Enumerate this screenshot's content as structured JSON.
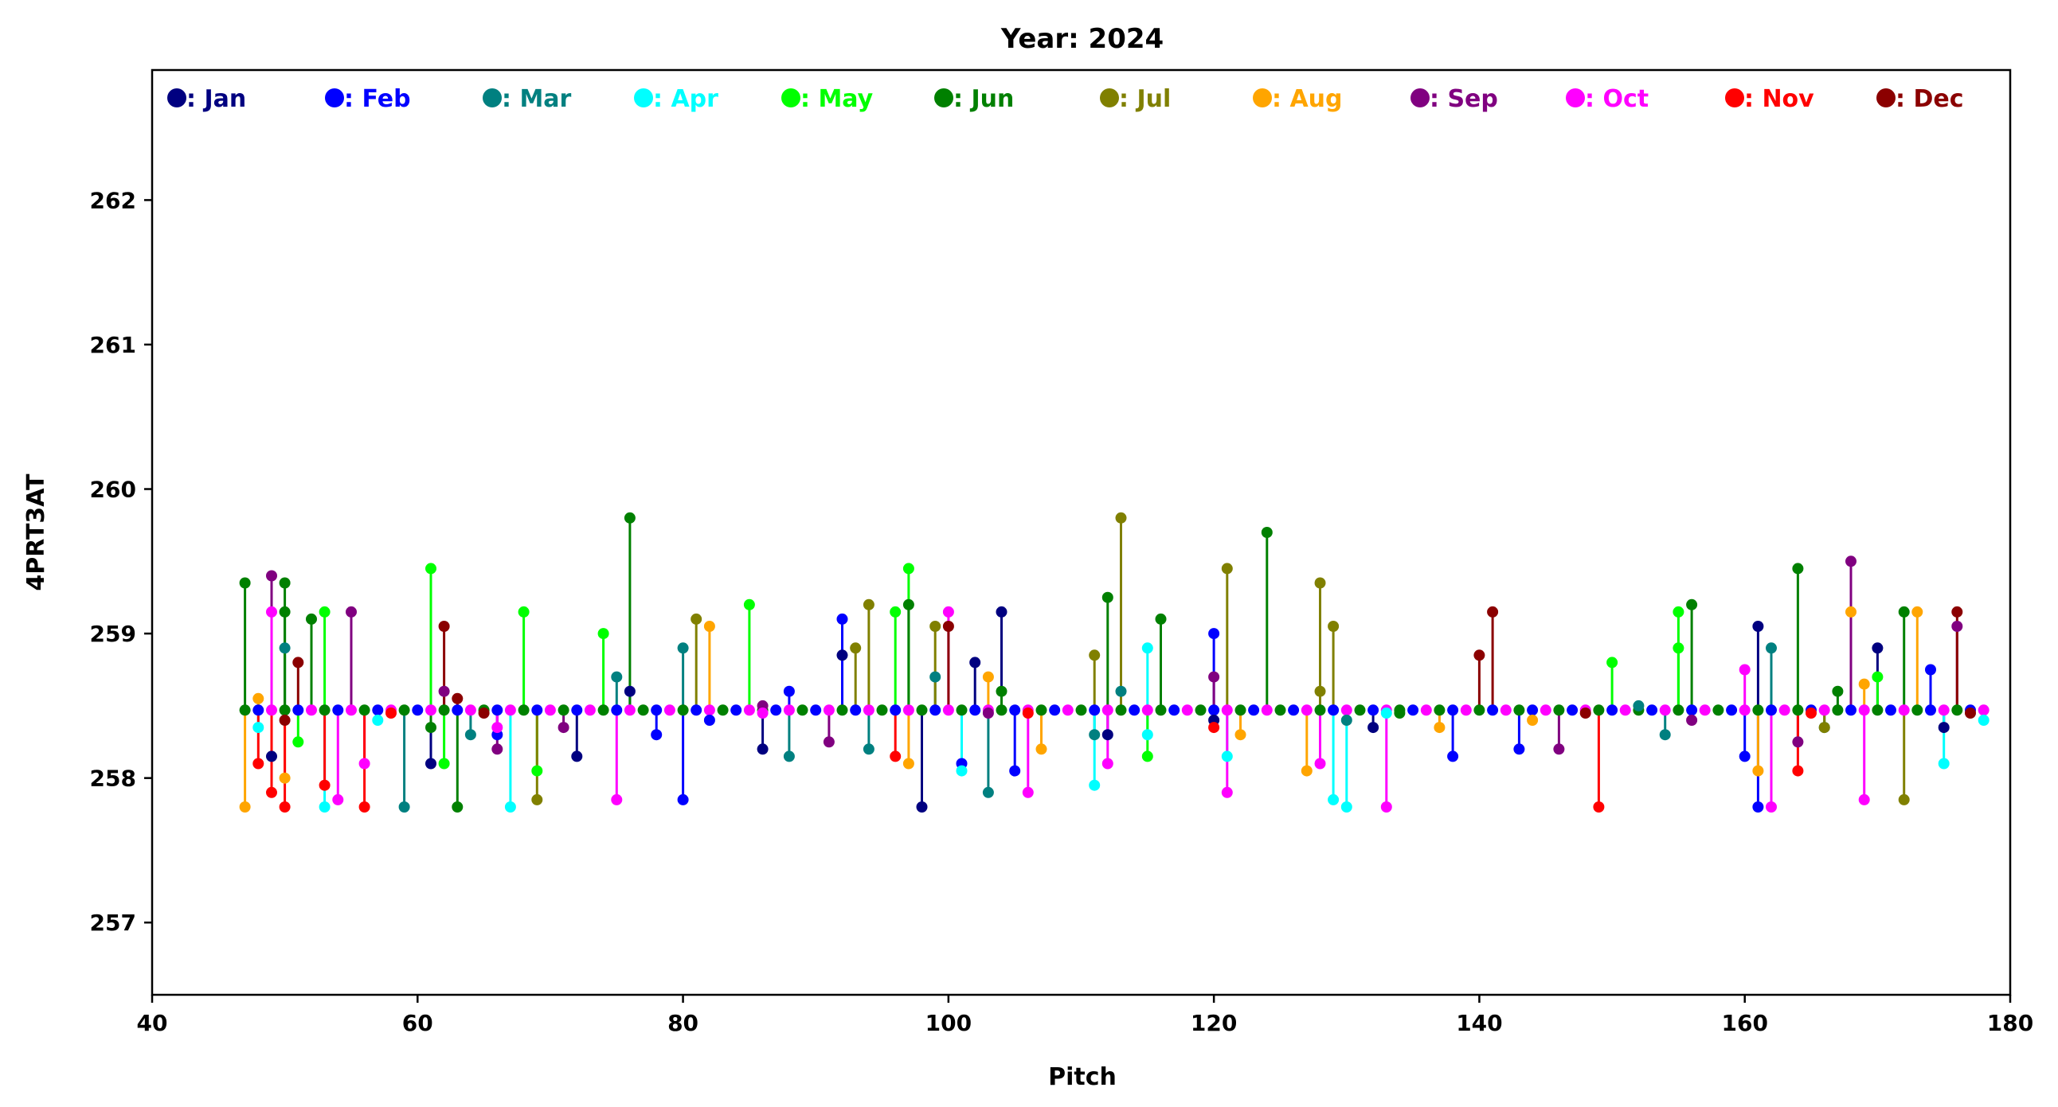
{
  "chart_data": {
    "type": "scatter",
    "title": "Year: 2024",
    "xlabel": "Pitch",
    "ylabel": "4PRT3AT",
    "xlim": [
      40,
      180
    ],
    "ylim": [
      256.5,
      262.9
    ],
    "xticks": [
      40,
      60,
      80,
      100,
      120,
      140,
      160,
      180
    ],
    "yticks": [
      257,
      258,
      259,
      260,
      261,
      262
    ],
    "base_value": 258.47,
    "legend": [
      {
        "label": ": Jan",
        "color": "#000080"
      },
      {
        "label": ": Feb",
        "color": "#0000ff"
      },
      {
        "label": ": Mar",
        "color": "#008080"
      },
      {
        "label": ": Apr",
        "color": "#00ffff"
      },
      {
        "label": ": May",
        "color": "#00ff00"
      },
      {
        "label": ": Jun",
        "color": "#008000"
      },
      {
        "label": ": Jul",
        "color": "#808000"
      },
      {
        "label": ": Aug",
        "color": "#ffa500"
      },
      {
        "label": ": Sep",
        "color": "#800080"
      },
      {
        "label": ": Oct",
        "color": "#ff00ff"
      },
      {
        "label": ": Nov",
        "color": "#ff0000"
      },
      {
        "label": ": Dec",
        "color": "#8b0000"
      }
    ],
    "series": [
      {
        "name": "Jan",
        "color": "#000080",
        "points": [
          [
            49,
            258.15
          ],
          [
            61,
            258.1
          ],
          [
            72,
            258.15
          ],
          [
            76,
            258.6
          ],
          [
            86,
            258.2
          ],
          [
            92,
            258.85
          ],
          [
            98,
            257.8
          ],
          [
            102,
            258.8
          ],
          [
            104,
            259.15
          ],
          [
            112,
            258.3
          ],
          [
            120,
            258.4
          ],
          [
            132,
            258.35
          ],
          [
            161,
            259.05
          ],
          [
            170,
            258.9
          ],
          [
            175,
            258.35
          ]
        ]
      },
      {
        "name": "Feb",
        "color": "#0000ff",
        "points": [
          [
            66,
            258.3
          ],
          [
            78,
            258.3
          ],
          [
            80,
            257.85
          ],
          [
            82,
            258.4
          ],
          [
            88,
            258.6
          ],
          [
            92,
            259.1
          ],
          [
            101,
            258.1
          ],
          [
            105,
            258.05
          ],
          [
            120,
            259.0
          ],
          [
            138,
            258.15
          ],
          [
            143,
            258.2
          ],
          [
            160,
            258.15
          ],
          [
            161,
            257.8
          ],
          [
            174,
            258.75
          ]
        ]
      },
      {
        "name": "Mar",
        "color": "#008080",
        "points": [
          [
            50,
            258.9
          ],
          [
            59,
            257.8
          ],
          [
            64,
            258.3
          ],
          [
            75,
            258.7
          ],
          [
            80,
            258.9
          ],
          [
            88,
            258.15
          ],
          [
            94,
            258.2
          ],
          [
            99,
            258.7
          ],
          [
            103,
            257.9
          ],
          [
            111,
            258.3
          ],
          [
            113,
            258.6
          ],
          [
            130,
            258.4
          ],
          [
            152,
            258.5
          ],
          [
            154,
            258.3
          ],
          [
            162,
            258.9
          ],
          [
            166,
            258.35
          ]
        ]
      },
      {
        "name": "Apr",
        "color": "#00ffff",
        "points": [
          [
            48,
            258.35
          ],
          [
            53,
            257.8
          ],
          [
            57,
            258.4
          ],
          [
            67,
            257.8
          ],
          [
            101,
            258.05
          ],
          [
            111,
            257.95
          ],
          [
            115,
            258.9
          ],
          [
            115,
            258.3
          ],
          [
            121,
            258.15
          ],
          [
            129,
            257.85
          ],
          [
            130,
            257.8
          ],
          [
            133,
            258.45
          ],
          [
            175,
            258.1
          ],
          [
            178,
            258.4
          ]
        ]
      },
      {
        "name": "May",
        "color": "#00ff00",
        "points": [
          [
            51,
            258.25
          ],
          [
            53,
            259.15
          ],
          [
            61,
            259.45
          ],
          [
            62,
            258.1
          ],
          [
            68,
            259.15
          ],
          [
            69,
            258.05
          ],
          [
            74,
            259.0
          ],
          [
            85,
            259.2
          ],
          [
            96,
            259.15
          ],
          [
            97,
            259.45
          ],
          [
            115,
            258.15
          ],
          [
            150,
            258.8
          ],
          [
            155,
            258.9
          ],
          [
            155,
            259.15
          ],
          [
            170,
            258.7
          ]
        ]
      },
      {
        "name": "Jun",
        "color": "#008000",
        "points": [
          [
            47,
            259.35
          ],
          [
            50,
            259.35
          ],
          [
            50,
            259.15
          ],
          [
            52,
            259.1
          ],
          [
            61,
            258.35
          ],
          [
            63,
            257.8
          ],
          [
            76,
            259.8
          ],
          [
            97,
            259.2
          ],
          [
            104,
            258.6
          ],
          [
            112,
            259.25
          ],
          [
            116,
            259.1
          ],
          [
            124,
            259.7
          ],
          [
            134,
            258.45
          ],
          [
            156,
            259.2
          ],
          [
            164,
            259.45
          ],
          [
            167,
            258.6
          ],
          [
            172,
            259.15
          ]
        ]
      },
      {
        "name": "Jul",
        "color": "#808000",
        "points": [
          [
            69,
            257.85
          ],
          [
            81,
            259.1
          ],
          [
            93,
            258.9
          ],
          [
            94,
            259.2
          ],
          [
            99,
            259.05
          ],
          [
            111,
            258.85
          ],
          [
            113,
            259.8
          ],
          [
            121,
            259.45
          ],
          [
            128,
            259.35
          ],
          [
            128,
            258.6
          ],
          [
            129,
            259.05
          ],
          [
            166,
            258.35
          ],
          [
            172,
            257.85
          ]
        ]
      },
      {
        "name": "Aug",
        "color": "#ffa500",
        "points": [
          [
            47,
            257.8
          ],
          [
            48,
            258.55
          ],
          [
            50,
            258.0
          ],
          [
            82,
            259.05
          ],
          [
            97,
            258.1
          ],
          [
            103,
            258.7
          ],
          [
            107,
            258.2
          ],
          [
            122,
            258.3
          ],
          [
            127,
            258.05
          ],
          [
            137,
            258.35
          ],
          [
            144,
            258.4
          ],
          [
            161,
            258.05
          ],
          [
            168,
            259.15
          ],
          [
            169,
            258.65
          ],
          [
            173,
            259.15
          ]
        ]
      },
      {
        "name": "Sep",
        "color": "#800080",
        "points": [
          [
            49,
            259.4
          ],
          [
            55,
            259.15
          ],
          [
            62,
            258.6
          ],
          [
            66,
            258.2
          ],
          [
            71,
            258.35
          ],
          [
            86,
            258.5
          ],
          [
            91,
            258.25
          ],
          [
            103,
            258.45
          ],
          [
            120,
            258.7
          ],
          [
            146,
            258.2
          ],
          [
            156,
            258.4
          ],
          [
            164,
            258.25
          ],
          [
            168,
            259.5
          ],
          [
            176,
            259.05
          ]
        ]
      },
      {
        "name": "Oct",
        "color": "#ff00ff",
        "points": [
          [
            49,
            259.15
          ],
          [
            54,
            257.85
          ],
          [
            56,
            258.1
          ],
          [
            66,
            258.35
          ],
          [
            75,
            257.85
          ],
          [
            86,
            258.45
          ],
          [
            100,
            259.15
          ],
          [
            106,
            257.9
          ],
          [
            112,
            258.1
          ],
          [
            121,
            257.9
          ],
          [
            128,
            258.1
          ],
          [
            133,
            257.8
          ],
          [
            160,
            258.75
          ],
          [
            162,
            257.8
          ],
          [
            169,
            257.85
          ]
        ]
      },
      {
        "name": "Nov",
        "color": "#ff0000",
        "points": [
          [
            48,
            258.1
          ],
          [
            49,
            257.9
          ],
          [
            50,
            257.8
          ],
          [
            53,
            257.95
          ],
          [
            56,
            257.8
          ],
          [
            58,
            258.45
          ],
          [
            96,
            258.15
          ],
          [
            106,
            258.45
          ],
          [
            120,
            258.35
          ],
          [
            149,
            257.8
          ],
          [
            164,
            258.05
          ],
          [
            165,
            258.45
          ]
        ]
      },
      {
        "name": "Dec",
        "color": "#8b0000",
        "points": [
          [
            50,
            258.4
          ],
          [
            51,
            258.8
          ],
          [
            62,
            259.05
          ],
          [
            63,
            258.55
          ],
          [
            65,
            258.45
          ],
          [
            100,
            259.05
          ],
          [
            140,
            258.85
          ],
          [
            141,
            259.15
          ],
          [
            148,
            258.45
          ],
          [
            176,
            259.15
          ],
          [
            177,
            258.45
          ]
        ]
      }
    ]
  }
}
